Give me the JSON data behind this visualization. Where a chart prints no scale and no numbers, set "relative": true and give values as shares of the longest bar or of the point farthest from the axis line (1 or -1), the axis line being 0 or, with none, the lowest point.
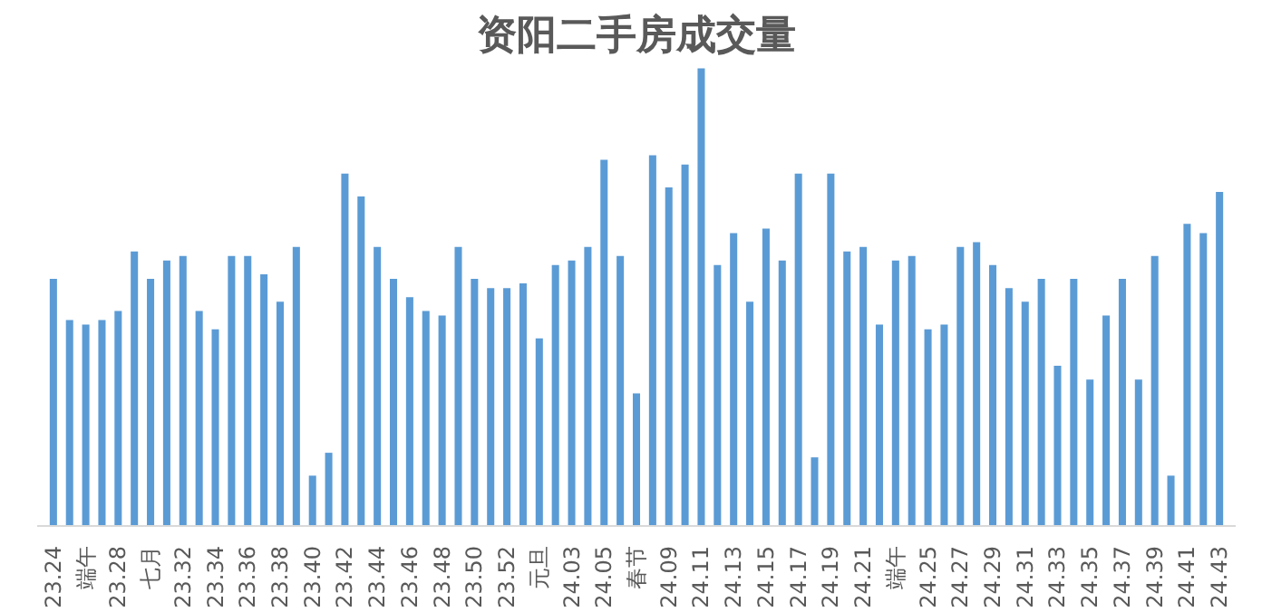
{
  "chart_data": {
    "type": "bar",
    "title": "资阳二手房成交量",
    "relative": true,
    "color": "#5b9bd5",
    "categories": [
      "23.24",
      null,
      "端午",
      null,
      "23.28",
      null,
      "七月",
      null,
      "23.32",
      null,
      "23.34",
      null,
      "23.36",
      null,
      "23.38",
      null,
      "23.40",
      null,
      "23.42",
      null,
      "23.44",
      null,
      "23.46",
      null,
      "23.48",
      null,
      "23.50",
      null,
      "23.52",
      null,
      "元旦",
      null,
      "24.03",
      null,
      "24.05",
      null,
      "春节",
      null,
      "24.09",
      null,
      "24.11",
      null,
      "24.13",
      null,
      "24.15",
      null,
      "24.17",
      null,
      "24.19",
      null,
      "24.21",
      null,
      "端午",
      null,
      "24.25",
      null,
      "24.27",
      null,
      "24.29",
      null,
      "24.31",
      null,
      "24.33",
      null,
      "24.35",
      null,
      "24.37",
      null,
      "24.39",
      null,
      "24.41",
      null,
      "24.43"
    ],
    "values": [
      0.54,
      0.45,
      0.44,
      0.45,
      0.47,
      0.6,
      0.54,
      0.58,
      0.59,
      0.47,
      0.43,
      0.59,
      0.59,
      0.55,
      0.49,
      0.61,
      0.11,
      0.16,
      0.77,
      0.72,
      0.61,
      0.54,
      0.5,
      0.47,
      0.46,
      0.61,
      0.54,
      0.52,
      0.52,
      0.53,
      0.41,
      0.57,
      0.58,
      0.61,
      0.8,
      0.59,
      0.29,
      0.81,
      0.74,
      0.79,
      1,
      0.57,
      0.64,
      0.49,
      0.65,
      0.58,
      0.77,
      0.15,
      0.77,
      0.6,
      0.61,
      0.44,
      0.58,
      0.59,
      0.43,
      0.44,
      0.61,
      0.62,
      0.57,
      0.52,
      0.49,
      0.54,
      0.35,
      0.54,
      0.32,
      0.46,
      0.54,
      0.32,
      0.59,
      0.11,
      0.66,
      0.64,
      0.73
    ]
  }
}
